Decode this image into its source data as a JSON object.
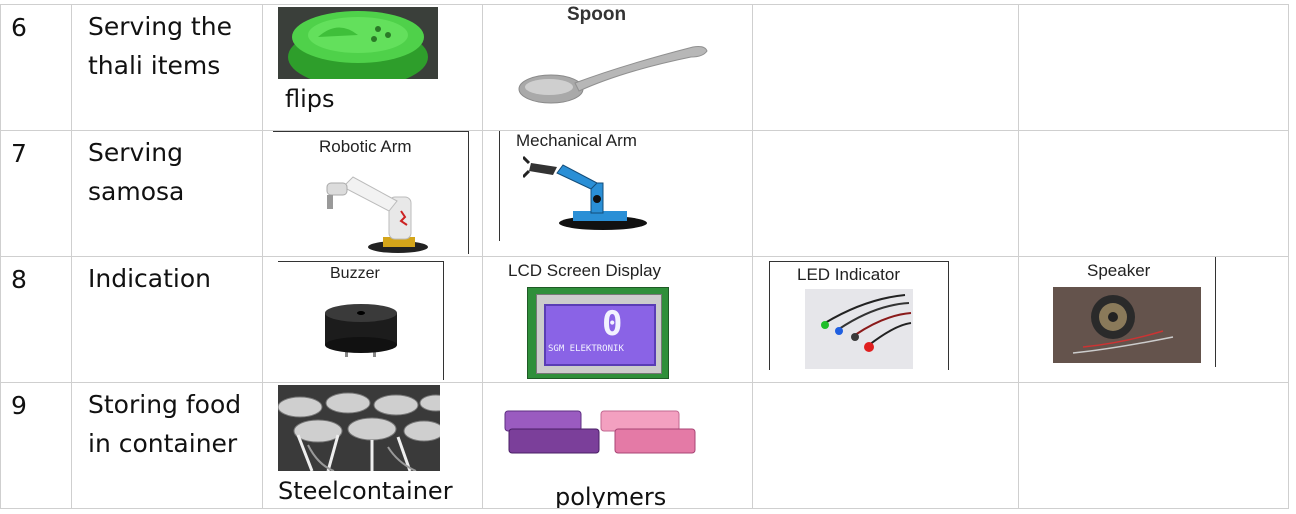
{
  "rows": [
    {
      "num": "6",
      "activity": [
        "Serving the",
        "thali items"
      ],
      "items": [
        {
          "image": "green-spice-flip-cap",
          "caption": "flips"
        },
        {
          "image": "spoon",
          "label": "Spoon"
        }
      ]
    },
    {
      "num": "7",
      "activity": [
        "Serving",
        "samosa"
      ],
      "items": [
        {
          "image": "robotic-arm",
          "label": "Robotic Arm"
        },
        {
          "image": "mechanical-arm",
          "label": "Mechanical Arm"
        }
      ]
    },
    {
      "num": "8",
      "activity": [
        "Indication"
      ],
      "items": [
        {
          "image": "buzzer",
          "label": "Buzzer"
        },
        {
          "image": "lcd-display",
          "label": "LCD Screen Display",
          "screen_text": "SGM ELEKTRONIK",
          "screen_digit": "0"
        },
        {
          "image": "led-indicator",
          "label": "LED Indicator"
        },
        {
          "image": "speaker",
          "label": "Speaker"
        }
      ]
    },
    {
      "num": "9",
      "activity": [
        "Storing food",
        "in container"
      ],
      "items": [
        {
          "image": "steel-containers",
          "caption": "Steelcontainer"
        },
        {
          "image": "polymer-containers",
          "caption": "polymers"
        }
      ]
    }
  ],
  "colors": {
    "green_cap": "#3fbf3a",
    "lcd_purple": "#8a63e6",
    "lcd_board": "#2f8f3a",
    "arm_blue": "#2a8fd6",
    "purple_box": "#7b3f9a",
    "pink_box": "#e47aa6"
  }
}
